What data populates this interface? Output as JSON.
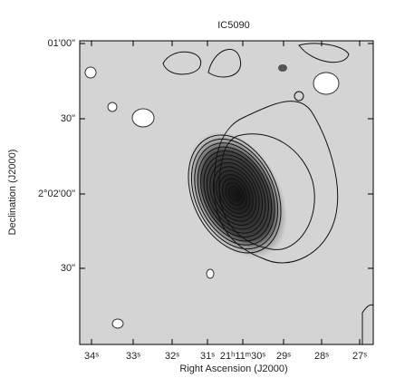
{
  "figure": {
    "title": "IC5090",
    "x_label": "Right Ascension (J2000)",
    "y_label": "Declination (J2000)",
    "x_tick_labels": [
      "34ˢ",
      "33ˢ",
      "32ˢ",
      "31ˢ",
      "21ʰ11ᵐ30ˢ",
      "29ˢ",
      "28ˢ",
      "27ˢ"
    ],
    "y_tick_labels": [
      "01'00\"",
      "30\"",
      "2°02'00\"",
      "30\""
    ]
  }
}
